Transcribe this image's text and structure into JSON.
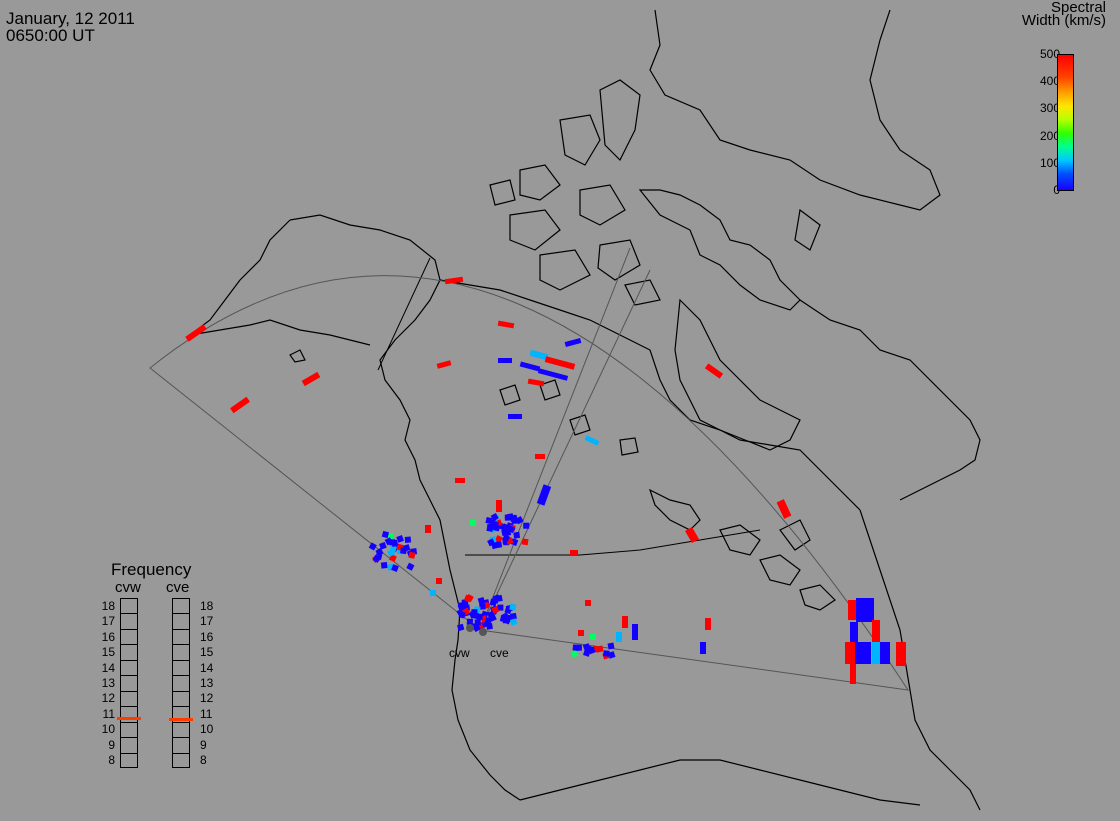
{
  "header": {
    "date": "January, 12 2011",
    "time": "0650:00 UT"
  },
  "colorbar": {
    "title_line1": "Spectral",
    "title_line2": "Width (km/s)",
    "ticks": [
      "500",
      "400",
      "300",
      "200",
      "100",
      "0"
    ],
    "min": 0,
    "max": 500
  },
  "frequency_panel": {
    "title": "Frequency",
    "radars": [
      "cvw",
      "cve"
    ],
    "scale": [
      "18",
      "17",
      "16",
      "15",
      "14",
      "13",
      "12",
      "11",
      "10",
      "9",
      "8"
    ],
    "scale_min": 8,
    "scale_max": 18,
    "cvw_mhz": 10.8,
    "cve_mhz": 10.7,
    "marker_color": "#ff3c00"
  },
  "map": {
    "background": "#999999",
    "site_labels": [
      "cvw",
      "cve"
    ]
  }
}
